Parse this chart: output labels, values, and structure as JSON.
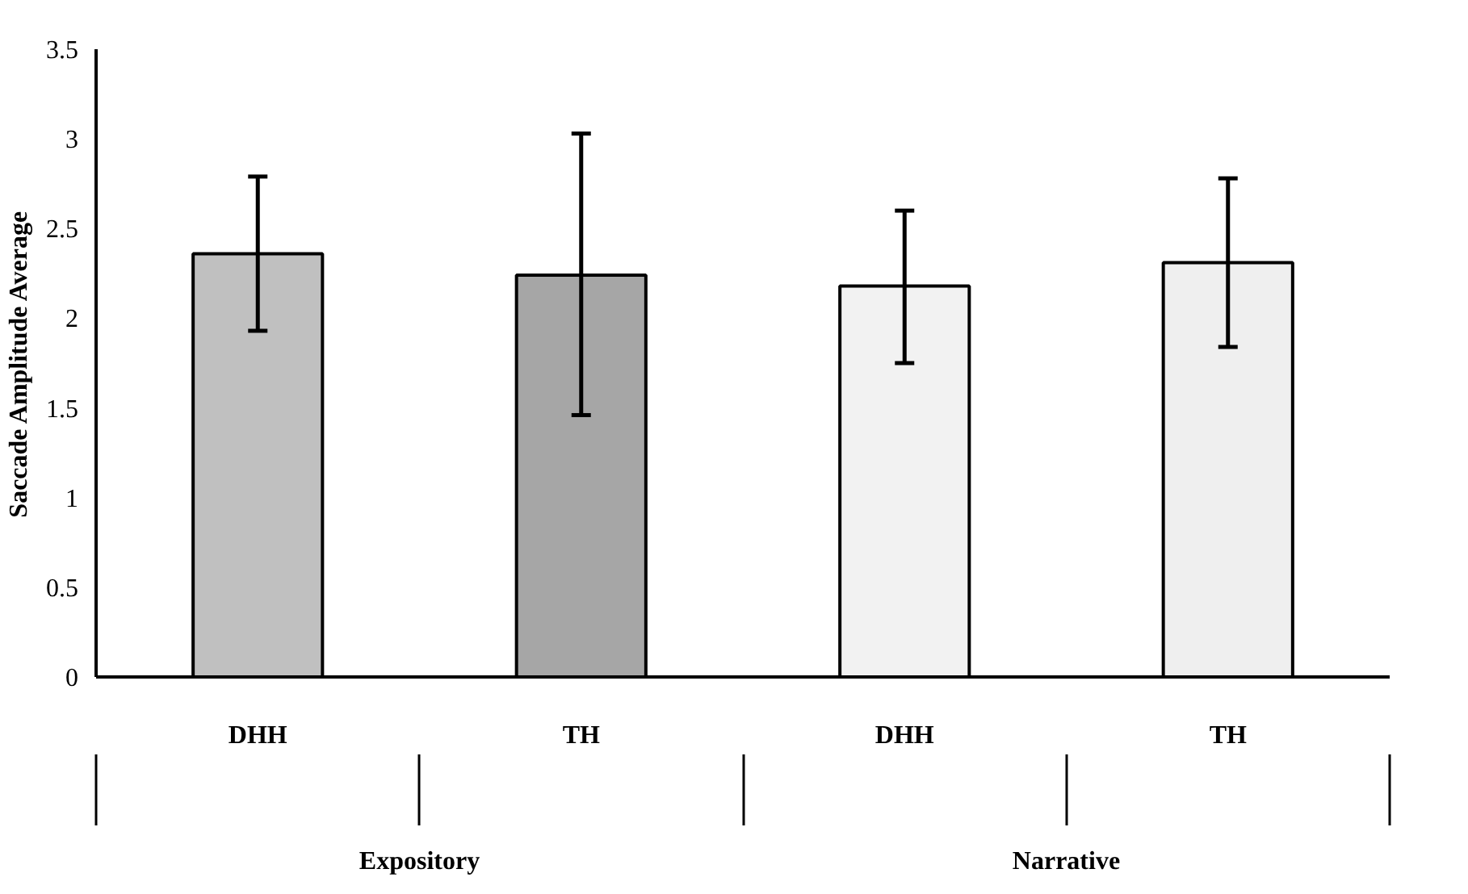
{
  "chart_data": {
    "type": "bar",
    "ylabel": "Saccade Amplitude Average",
    "categories": [
      "DHH",
      "TH",
      "DHH",
      "TH"
    ],
    "values": [
      2.36,
      2.24,
      2.18,
      2.31
    ],
    "errors": [
      [
        1.93,
        2.79
      ],
      [
        1.46,
        3.03
      ],
      [
        1.75,
        2.6
      ],
      [
        1.84,
        2.78
      ]
    ],
    "colors": [
      "#c0c0c0",
      "#a6a6a6",
      "#f2f2f2",
      "#efefef"
    ],
    "annotations": [
      "Expository",
      "Narrative"
    ],
    "ylim": [
      0,
      3.5
    ],
    "yticks": [
      0,
      0.5,
      1,
      1.5,
      2,
      2.5,
      3,
      3.5
    ],
    "grid": false
  }
}
